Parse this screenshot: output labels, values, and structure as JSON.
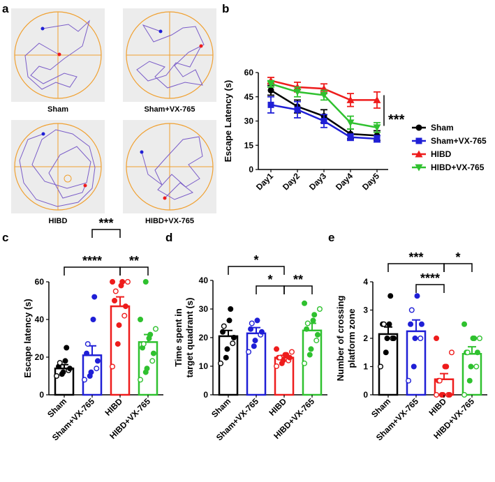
{
  "panel_labels": [
    "a",
    "b",
    "c",
    "d",
    "e"
  ],
  "maze_labels": [
    "Sham",
    "Sham+VX-765",
    "HIBD",
    "HIBD+VX-765"
  ],
  "colors": {
    "black": "#000000",
    "blue": "#1f1fd6",
    "red": "#ee1c1c",
    "green": "#2fc12f",
    "maze_line": "#f0a030",
    "maze_bg": "#ececec",
    "track": "#7a5cc8"
  },
  "chart_data": [
    {
      "type": "line",
      "panel": "b",
      "ylabel": "Escape Latency (s)",
      "categories": [
        "Day1",
        "Day2",
        "Day3",
        "Day4",
        "Day5"
      ],
      "ylim": [
        0,
        60
      ],
      "yticks": [
        "0",
        "15",
        "30",
        "45",
        "60"
      ],
      "series": [
        {
          "name": "Sham",
          "marker": "circle",
          "color": "#000000",
          "values": [
            49,
            39,
            33,
            22,
            21
          ],
          "errors": [
            3,
            4,
            4,
            3,
            3
          ]
        },
        {
          "name": "Sham+VX-765",
          "marker": "square",
          "color": "#1f1fd6",
          "values": [
            40,
            37,
            30,
            20,
            19
          ],
          "errors": [
            5,
            5,
            4,
            2,
            2
          ]
        },
        {
          "name": "HIBD",
          "marker": "triangle-up",
          "color": "#ee1c1c",
          "values": [
            55,
            51,
            50,
            43,
            43
          ],
          "errors": [
            2,
            3,
            3,
            4,
            5
          ]
        },
        {
          "name": "HIBD+VX-765",
          "marker": "triangle-down",
          "color": "#2fc12f",
          "values": [
            53,
            48,
            46,
            29,
            26
          ],
          "errors": [
            2,
            3,
            3,
            4,
            3
          ]
        }
      ],
      "significance": "***"
    },
    {
      "type": "bar",
      "panel": "c",
      "ylabel": "Escape latency (s)",
      "categories": [
        "Sham",
        "Sham+VX-765",
        "HIBD",
        "HIBD+VX-765"
      ],
      "colors": [
        "#000000",
        "#1f1fd6",
        "#ee1c1c",
        "#2fc12f"
      ],
      "values": [
        14,
        21,
        47,
        28
      ],
      "errors": [
        2,
        5,
        5,
        4
      ],
      "ylim": [
        0,
        60
      ],
      "yticks": [
        "0",
        "20",
        "40",
        "60"
      ],
      "points": [
        [
          10,
          11,
          12,
          13,
          14,
          15,
          17,
          18,
          25
        ],
        [
          8,
          10,
          12,
          14,
          18,
          22,
          27,
          40,
          52
        ],
        [
          15,
          27,
          37,
          42,
          47,
          50,
          55,
          58,
          60,
          60,
          60
        ],
        [
          8,
          12,
          14,
          18,
          22,
          25,
          27,
          30,
          32,
          35,
          40,
          60
        ]
      ],
      "brackets": [
        {
          "from": 0,
          "to": 2,
          "level": 4,
          "label": "****"
        },
        {
          "from": 2,
          "to": 3,
          "level": 4,
          "label": "**"
        },
        {
          "from": 1,
          "to": 2,
          "level": 3,
          "label": "***"
        }
      ]
    },
    {
      "type": "bar",
      "panel": "d",
      "ylabel": [
        "Time spent in",
        "target quadrant (s)"
      ],
      "categories": [
        "Sham",
        "Sham+VX-765",
        "HIBD",
        "HIBD+VX-765"
      ],
      "colors": [
        "#000000",
        "#1f1fd6",
        "#ee1c1c",
        "#2fc12f"
      ],
      "values": [
        20.5,
        21.5,
        13,
        22.5
      ],
      "errors": [
        2,
        2,
        0.8,
        2.5
      ],
      "ylim": [
        0,
        40
      ],
      "yticks": [
        "0",
        "10",
        "20",
        "30",
        "40"
      ],
      "points": [
        [
          11,
          13,
          16,
          18,
          20,
          22,
          24,
          26,
          30
        ],
        [
          15,
          17,
          19,
          21,
          22,
          23,
          25,
          26
        ],
        [
          10,
          11,
          12,
          12,
          13,
          13,
          13,
          14,
          14,
          15,
          16
        ],
        [
          11,
          14,
          16,
          19,
          21,
          23,
          25,
          26,
          28,
          30,
          32
        ]
      ],
      "brackets": [
        {
          "from": 0,
          "to": 2,
          "level": 4,
          "label": "*"
        },
        {
          "from": 1,
          "to": 2,
          "level": 3,
          "label": "*"
        },
        {
          "from": 2,
          "to": 3,
          "level": 3,
          "label": "**"
        }
      ]
    },
    {
      "type": "bar",
      "panel": "e",
      "ylabel": [
        "Number of crossing",
        "platform zone"
      ],
      "categories": [
        "Sham",
        "Sham+VX-765",
        "HIBD",
        "HIBD+VX-765"
      ],
      "colors": [
        "#000000",
        "#1f1fd6",
        "#ee1c1c",
        "#2fc12f"
      ],
      "values": [
        2.15,
        2.25,
        0.55,
        1.45
      ],
      "errors": [
        0.25,
        0.4,
        0.2,
        0.25
      ],
      "ylim": [
        0,
        4
      ],
      "yticks": [
        "0",
        "1",
        "2",
        "3",
        "4"
      ],
      "points": [
        [
          1,
          1.5,
          2,
          2,
          2,
          2.5,
          2.5,
          2.5,
          3.5
        ],
        [
          0.5,
          1,
          2,
          2,
          2.5,
          2.5,
          3,
          3.5
        ],
        [
          0,
          0,
          0,
          0,
          0,
          0.5,
          0.5,
          1,
          1,
          1.5,
          2
        ],
        [
          0,
          0.5,
          1,
          1,
          1.5,
          1.5,
          1.5,
          2,
          2,
          2,
          2.5
        ]
      ],
      "brackets": [
        {
          "from": 0,
          "to": 2,
          "level": 4,
          "label": "***"
        },
        {
          "from": 1,
          "to": 2,
          "level": 3,
          "label": "****"
        },
        {
          "from": 2,
          "to": 3,
          "level": 4,
          "label": "*"
        }
      ]
    }
  ]
}
